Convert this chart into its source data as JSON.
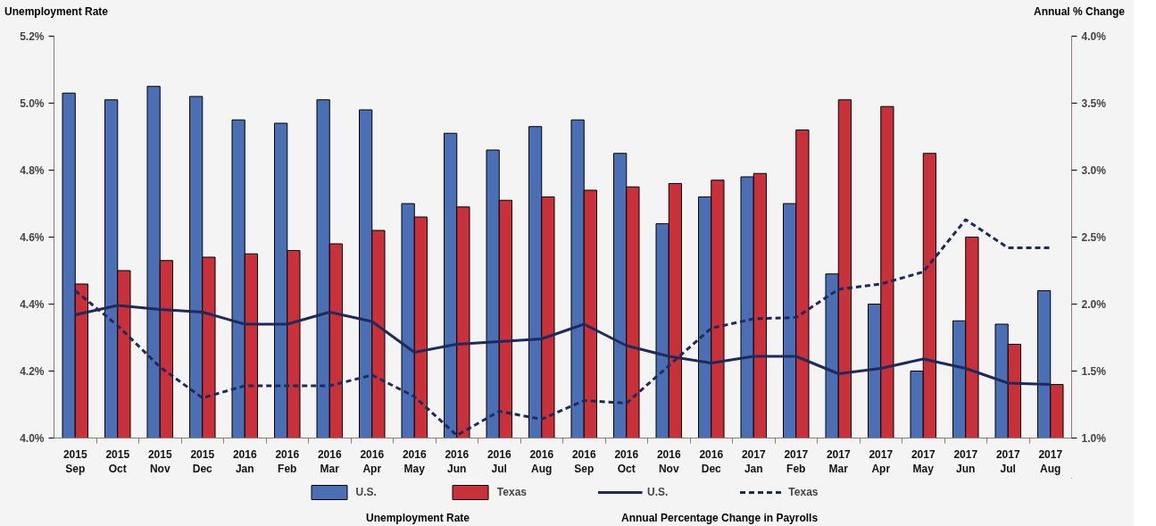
{
  "chart_data": {
    "type": "bar",
    "ylabel": "Unemployment Rate",
    "y2label": "Annual % Change",
    "categories": [
      "2015\nSep",
      "2015\nOct",
      "2015\nNov",
      "2015\nDec",
      "2016\nJan",
      "2016\nFeb",
      "2016\nMar",
      "2016\nApr",
      "2016\nMay",
      "2016\nJun",
      "2016\nJul",
      "2016\nAug",
      "2016\nSep",
      "2016\nOct",
      "2016\nNov",
      "2016\nDec",
      "2017\nJan",
      "2017\nFeb",
      "2017\nMar",
      "2017\nApr",
      "2017\nMay",
      "2017\nJun",
      "2017\nJul",
      "2017\nAug"
    ],
    "series": [
      {
        "name": "U.S.",
        "color": "#4a6fb5",
        "values": [
          5.03,
          5.01,
          5.05,
          5.02,
          4.95,
          4.94,
          5.01,
          4.98,
          4.7,
          4.91,
          4.86,
          4.93,
          4.95,
          4.85,
          4.64,
          4.72,
          4.78,
          4.7,
          4.49,
          4.4,
          4.2,
          4.35,
          4.34,
          4.44
        ]
      },
      {
        "name": "Texas",
        "color": "#c8313a",
        "values": [
          4.46,
          4.5,
          4.53,
          4.54,
          4.55,
          4.56,
          4.58,
          4.62,
          4.66,
          4.69,
          4.71,
          4.72,
          4.74,
          4.75,
          4.76,
          4.77,
          4.79,
          4.92,
          5.01,
          4.99,
          4.85,
          4.6,
          4.28,
          4.16
        ]
      },
      {
        "name": "U.S.",
        "type": "line",
        "axis": "y2",
        "color": "#1f2a5c",
        "line_style": "solid",
        "values": [
          1.92,
          1.99,
          1.96,
          1.94,
          1.85,
          1.85,
          1.94,
          1.87,
          1.64,
          1.7,
          1.72,
          1.74,
          1.85,
          1.69,
          1.61,
          1.56,
          1.61,
          1.61,
          1.48,
          1.52,
          1.59,
          1.52,
          1.41,
          1.4
        ]
      },
      {
        "name": "Texas",
        "type": "line",
        "axis": "y2",
        "color": "#1f2a5c",
        "line_style": "dashed",
        "values": [
          2.1,
          1.84,
          1.53,
          1.3,
          1.39,
          1.39,
          1.39,
          1.47,
          1.31,
          1.02,
          1.2,
          1.14,
          1.28,
          1.26,
          1.54,
          1.82,
          1.89,
          1.9,
          2.11,
          2.15,
          2.24,
          2.63,
          2.42,
          2.42
        ]
      }
    ],
    "ylim": [
      4.0,
      5.2
    ],
    "yticks": [
      {
        "value": 4.0,
        "label": "4.0%"
      },
      {
        "value": 4.2,
        "label": "4.2%"
      },
      {
        "value": 4.4,
        "label": "4.4%"
      },
      {
        "value": 4.6,
        "label": "4.6%"
      },
      {
        "value": 4.8,
        "label": "4.8%"
      },
      {
        "value": 5.0,
        "label": "5.0%"
      },
      {
        "value": 5.2,
        "label": "5.2%"
      }
    ],
    "y2lim": [
      1.0,
      4.0
    ],
    "y2ticks": [
      {
        "value": 1.0,
        "label": "1.0%"
      },
      {
        "value": 1.5,
        "label": "1.5%"
      },
      {
        "value": 2.0,
        "label": "2.0%"
      },
      {
        "value": 2.5,
        "label": "2.5%"
      },
      {
        "value": 3.0,
        "label": "3.0%"
      },
      {
        "value": 3.5,
        "label": "3.5%"
      },
      {
        "value": 4.0,
        "label": "4.0%"
      }
    ],
    "grid": false,
    "legend": "bottom",
    "annotations": [
      "Unemployment Rate",
      "Annual Percentage Change in Payrolls"
    ]
  }
}
